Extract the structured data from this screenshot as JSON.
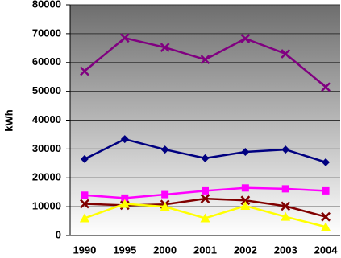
{
  "chart_data": {
    "type": "line",
    "y_label": "kWh",
    "categories": [
      "1990",
      "1995",
      "2000",
      "2001",
      "2002",
      "2003",
      "2004"
    ],
    "series": [
      {
        "color": "#800080",
        "marker": "x",
        "values": [
          57000,
          68500,
          65200,
          61000,
          68300,
          63000,
          51500
        ]
      },
      {
        "color": "#000080",
        "marker": "diamond",
        "values": [
          26500,
          33400,
          29800,
          26800,
          29000,
          29800,
          25400
        ]
      },
      {
        "color": "#ff00ff",
        "marker": "square",
        "values": [
          14000,
          13000,
          14200,
          15500,
          16500,
          16200,
          15500
        ]
      },
      {
        "color": "#800000",
        "marker": "x",
        "values": [
          11000,
          10500,
          10800,
          12800,
          12200,
          10200,
          6500
        ]
      },
      {
        "color": "#ffff00",
        "marker": "triangle",
        "values": [
          6000,
          11000,
          10000,
          6000,
          10300,
          6500,
          3000
        ]
      }
    ],
    "ylim": [
      0,
      80000
    ],
    "yticks": [
      0,
      10000,
      20000,
      30000,
      40000,
      50000,
      60000,
      70000,
      80000
    ],
    "grid": true
  }
}
